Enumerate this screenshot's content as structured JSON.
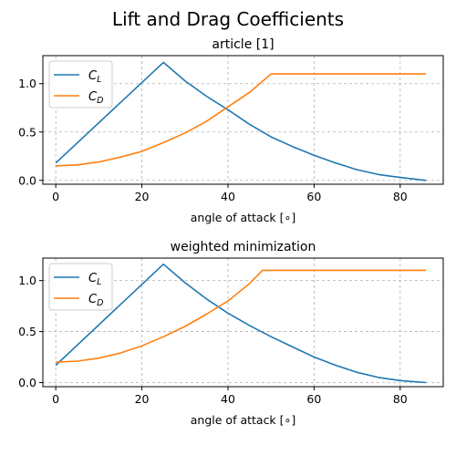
{
  "figure": {
    "suptitle": "Lift and Drag Coefficients"
  },
  "colors": {
    "cl": "#1f77b4",
    "cd": "#ff7f0e"
  },
  "chart_data": [
    {
      "type": "line",
      "title": "article [1]",
      "xlabel": "angle of attack [∘]",
      "ylabel": "",
      "xlim": [
        -3,
        90
      ],
      "ylim": [
        -0.04,
        1.29
      ],
      "xticks": [
        0,
        20,
        40,
        60,
        80
      ],
      "yticks": [
        0.0,
        0.5,
        1.0
      ],
      "xtick_labels": [
        "0",
        "20",
        "40",
        "60",
        "80"
      ],
      "ytick_labels": [
        "0.0",
        "0.5",
        "1.0"
      ],
      "grid": true,
      "legend_position": "top-left",
      "series": [
        {
          "name": "C_L",
          "legend_main": "C",
          "legend_sub": "L",
          "color": "#1f77b4",
          "x": [
            0,
            25,
            30,
            35,
            40,
            45,
            50,
            55,
            60,
            65,
            70,
            75,
            80,
            86
          ],
          "y": [
            0.18,
            1.22,
            1.03,
            0.87,
            0.73,
            0.58,
            0.45,
            0.35,
            0.26,
            0.18,
            0.11,
            0.06,
            0.03,
            0.0
          ]
        },
        {
          "name": "C_D",
          "legend_main": "C",
          "legend_sub": "D",
          "color": "#ff7f0e",
          "x": [
            0,
            5,
            10,
            15,
            20,
            25,
            30,
            35,
            40,
            45,
            50,
            55,
            60,
            70,
            80,
            86
          ],
          "y": [
            0.15,
            0.16,
            0.19,
            0.24,
            0.3,
            0.39,
            0.49,
            0.61,
            0.76,
            0.91,
            1.1,
            1.1,
            1.1,
            1.1,
            1.1,
            1.1
          ]
        }
      ]
    },
    {
      "type": "line",
      "title": "weighted minimization",
      "xlabel": "angle of attack [∘]",
      "ylabel": "",
      "xlim": [
        -3,
        90
      ],
      "ylim": [
        -0.04,
        1.22
      ],
      "xticks": [
        0,
        20,
        40,
        60,
        80
      ],
      "yticks": [
        0.0,
        0.5,
        1.0
      ],
      "xtick_labels": [
        "0",
        "20",
        "40",
        "60",
        "80"
      ],
      "ytick_labels": [
        "0.0",
        "0.5",
        "1.0"
      ],
      "grid": true,
      "legend_position": "top-left",
      "series": [
        {
          "name": "C_L",
          "legend_main": "C",
          "legend_sub": "L",
          "color": "#1f77b4",
          "x": [
            0,
            25,
            30,
            35,
            40,
            45,
            50,
            55,
            60,
            65,
            70,
            75,
            80,
            86
          ],
          "y": [
            0.17,
            1.16,
            0.98,
            0.82,
            0.68,
            0.56,
            0.45,
            0.35,
            0.25,
            0.17,
            0.1,
            0.05,
            0.02,
            0.0
          ]
        },
        {
          "name": "C_D",
          "legend_main": "C",
          "legend_sub": "D",
          "color": "#ff7f0e",
          "x": [
            0,
            5,
            10,
            15,
            20,
            25,
            30,
            35,
            40,
            45,
            48,
            55,
            60,
            70,
            80,
            86
          ],
          "y": [
            0.2,
            0.21,
            0.24,
            0.29,
            0.36,
            0.45,
            0.55,
            0.67,
            0.8,
            0.97,
            1.1,
            1.1,
            1.1,
            1.1,
            1.1,
            1.1
          ]
        }
      ]
    }
  ]
}
